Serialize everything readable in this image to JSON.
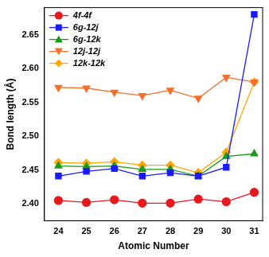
{
  "chart_data": {
    "type": "line",
    "x_label": "Atomic Number",
    "y_label": "Bond length (Å)",
    "x": [
      24,
      25,
      26,
      27,
      28,
      29,
      30,
      31
    ],
    "xlim": [
      23.5,
      31.3
    ],
    "xticks": [
      24,
      25,
      26,
      27,
      28,
      29,
      30,
      31
    ],
    "ylim": [
      2.375,
      2.69
    ],
    "yticks": [
      {
        "value": 2.4,
        "label": "2.40"
      },
      {
        "value": 2.45,
        "label": "2.45"
      },
      {
        "value": 2.5,
        "label": "2.50"
      },
      {
        "value": 2.55,
        "label": "2.55"
      },
      {
        "value": 2.6,
        "label": "2.60"
      },
      {
        "value": 2.65,
        "label": "2.65"
      }
    ],
    "grid": false,
    "legend": "upper left",
    "series": [
      {
        "name": "4f-4f",
        "color": "#e8191c",
        "marker": "circle",
        "values": [
          2.405,
          2.402,
          2.406,
          2.401,
          2.401,
          2.407,
          2.403,
          2.417
        ]
      },
      {
        "name": "6g-12j",
        "color": "#1a1aff",
        "marker": "square",
        "values": [
          2.441,
          2.448,
          2.452,
          2.441,
          2.446,
          2.441,
          2.454,
          2.68
        ]
      },
      {
        "name": "6g-12k",
        "color": "#1a9a1a",
        "marker": "triangle",
        "values": [
          2.456,
          2.455,
          2.456,
          2.451,
          2.451,
          2.441,
          2.47,
          2.474
        ]
      },
      {
        "name": "12j-12j",
        "color": "#f4702a",
        "marker": "triangle_down",
        "values": [
          2.572,
          2.571,
          2.565,
          2.56,
          2.568,
          2.556,
          2.587,
          2.58
        ]
      },
      {
        "name": "12k-12k",
        "color": "#ffa500",
        "marker": "diamond",
        "values": [
          2.461,
          2.46,
          2.462,
          2.457,
          2.457,
          2.446,
          2.476,
          2.58
        ]
      }
    ]
  }
}
